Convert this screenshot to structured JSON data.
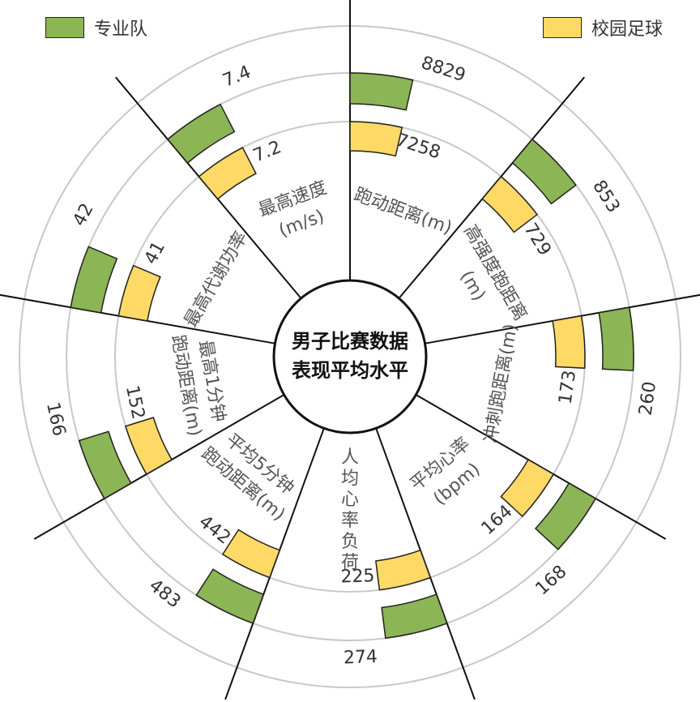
{
  "legend": {
    "pro_label": "专业队",
    "campus_label": "校园足球"
  },
  "colors": {
    "pro": "#8cb556",
    "campus": "#ffd966"
  },
  "chart_data": {
    "type": "radial-bar",
    "title_lines": [
      "男子比赛数据",
      "表现平均水平"
    ],
    "series": [
      {
        "name": "专业队",
        "color": "#8cb556"
      },
      {
        "name": "校园足球",
        "color": "#ffd966"
      }
    ],
    "categories": [
      {
        "label_lines": [
          "跑动距离(m)"
        ],
        "pro": 8829,
        "campus": 7258
      },
      {
        "label_lines": [
          "高强度跑距离",
          "(m)"
        ],
        "pro": 853,
        "campus": 729
      },
      {
        "label_lines": [
          "冲刺跑距离(m)"
        ],
        "pro": 260,
        "campus": 173
      },
      {
        "label_lines": [
          "平均心率",
          "(bpm)"
        ],
        "pro": 168,
        "campus": 164
      },
      {
        "label_lines": [
          "人",
          "均",
          "心",
          "率",
          "负",
          "荷"
        ],
        "pro": 274,
        "campus": 225
      },
      {
        "label_lines": [
          "平均5分钟",
          "跑动距离(m)"
        ],
        "pro": 483,
        "campus": 442
      },
      {
        "label_lines": [
          "最高1分钟",
          "跑动距离(m)"
        ],
        "pro": 166,
        "campus": 152
      },
      {
        "label_lines": [
          "最高代谢功率"
        ],
        "pro": 42,
        "campus": 41
      },
      {
        "label_lines": [
          "最高速度",
          "(m/s)"
        ],
        "pro": 7.4,
        "campus": 7.2
      }
    ]
  }
}
